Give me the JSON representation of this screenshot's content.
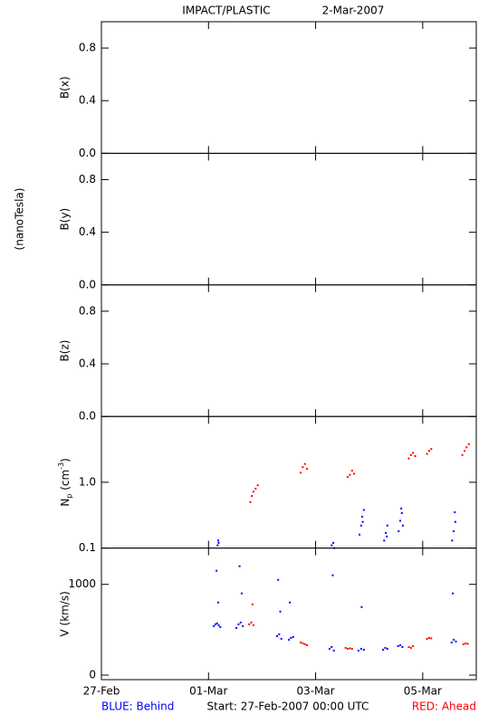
{
  "page": {
    "title": "IMPACT/PLASTIC",
    "date": "2-Mar-2007",
    "field_unit": "(nanoTesla)",
    "start": "Start: 27-Feb-2007 00:00 UTC"
  },
  "chart_data": [
    {
      "type": "scatter",
      "ylabel": "B(x)",
      "ylim": [
        0,
        1
      ],
      "yticks": [
        {
          "value": 0,
          "label": "0.0"
        },
        0.4,
        0.8
      ],
      "series": []
    },
    {
      "type": "scatter",
      "ylabel": "B(y)",
      "ylim": [
        0,
        1
      ],
      "yticks": [
        {
          "value": 0,
          "label": "0.0"
        },
        0.4,
        0.8
      ],
      "series": []
    },
    {
      "type": "scatter",
      "ylabel": "B(z)",
      "ylim": [
        0,
        1
      ],
      "yticks": [
        {
          "value": 0,
          "label": "0.0"
        },
        0.4,
        0.8
      ],
      "series": []
    },
    {
      "type": "scatter",
      "ylabel": {
        "base": "N",
        "sub": "p",
        "unit": " (cm",
        "sup": "-3",
        "close": ")"
      },
      "yscale": "log",
      "ylim": [
        0.1,
        10
      ],
      "yticks": [
        0.1,
        {
          "value": 1,
          "label": "1.0"
        }
      ],
      "series": [
        {
          "name": "BLUE: Behind",
          "color": "#0000ff",
          "x": [
            2.17,
            2.18,
            2.19,
            4.3,
            4.33,
            4.35,
            4.82,
            4.85,
            4.87,
            4.9,
            4.88,
            5.28,
            5.31,
            5.34,
            5.33,
            5.55,
            5.58,
            5.61,
            5.63,
            5.6,
            6.55,
            6.58,
            6.61,
            6.6
          ],
          "values": [
            0.11,
            0.13,
            0.12,
            0.11,
            0.12,
            0.1,
            0.16,
            0.22,
            0.3,
            0.38,
            0.25,
            0.13,
            0.17,
            0.22,
            0.15,
            0.18,
            0.26,
            0.34,
            0.22,
            0.4,
            0.13,
            0.18,
            0.25,
            0.35
          ]
        },
        {
          "name": "RED: Ahead",
          "color": "#ff0000",
          "x": [
            2.78,
            2.81,
            2.84,
            2.88,
            2.92,
            3.72,
            3.76,
            3.8,
            3.84,
            4.6,
            4.64,
            4.68,
            4.72,
            5.74,
            5.78,
            5.82,
            5.86,
            6.08,
            6.12,
            6.16,
            6.74,
            6.78,
            6.82,
            6.86
          ],
          "values": [
            0.5,
            0.62,
            0.72,
            0.8,
            0.9,
            1.4,
            1.7,
            1.9,
            1.6,
            1.2,
            1.3,
            1.5,
            1.35,
            2.3,
            2.6,
            2.8,
            2.5,
            2.7,
            3.0,
            3.2,
            2.6,
            3.0,
            3.4,
            3.8
          ]
        }
      ]
    },
    {
      "type": "scatter",
      "ylabel": "V (km/s)",
      "ylim": [
        -50,
        1400
      ],
      "yticks": [
        0,
        1000
      ],
      "xlim": [
        0,
        7
      ],
      "xticks": [
        {
          "value": 0,
          "label": "27-Feb"
        },
        {
          "value": 2,
          "label": "01-Mar"
        },
        {
          "value": 4,
          "label": "03-Mar"
        },
        {
          "value": 6,
          "label": "05-Mar"
        }
      ],
      "series": [
        {
          "name": "BLUE: Behind",
          "color": "#0000ff",
          "x": [
            2.1,
            2.13,
            2.16,
            2.19,
            2.22,
            2.15,
            2.18,
            2.52,
            2.56,
            2.6,
            2.64,
            2.58,
            2.62,
            3.28,
            3.32,
            3.36,
            3.3,
            3.34,
            3.5,
            3.54,
            3.58,
            3.52,
            4.26,
            4.3,
            4.34,
            4.32,
            4.8,
            4.85,
            4.9,
            4.86,
            5.26,
            5.3,
            5.34,
            5.54,
            5.58,
            5.62,
            6.54,
            6.58,
            6.62,
            6.56
          ],
          "values": [
            540,
            560,
            570,
            550,
            530,
            1150,
            800,
            520,
            560,
            580,
            540,
            1200,
            900,
            430,
            450,
            400,
            1050,
            700,
            390,
            410,
            420,
            800,
            290,
            310,
            270,
            1100,
            270,
            290,
            280,
            750,
            280,
            300,
            290,
            320,
            330,
            310,
            360,
            390,
            370,
            900
          ]
        },
        {
          "name": "RED: Ahead",
          "color": "#ff0000",
          "x": [
            2.76,
            2.8,
            2.84,
            2.82,
            3.72,
            3.76,
            3.8,
            3.84,
            4.56,
            4.6,
            4.64,
            4.68,
            5.74,
            5.78,
            5.82,
            6.08,
            6.12,
            6.16,
            6.76,
            6.8,
            6.84
          ],
          "values": [
            560,
            580,
            550,
            780,
            360,
            350,
            340,
            330,
            300,
            290,
            295,
            290,
            310,
            300,
            320,
            400,
            410,
            405,
            340,
            350,
            345
          ]
        }
      ]
    }
  ]
}
